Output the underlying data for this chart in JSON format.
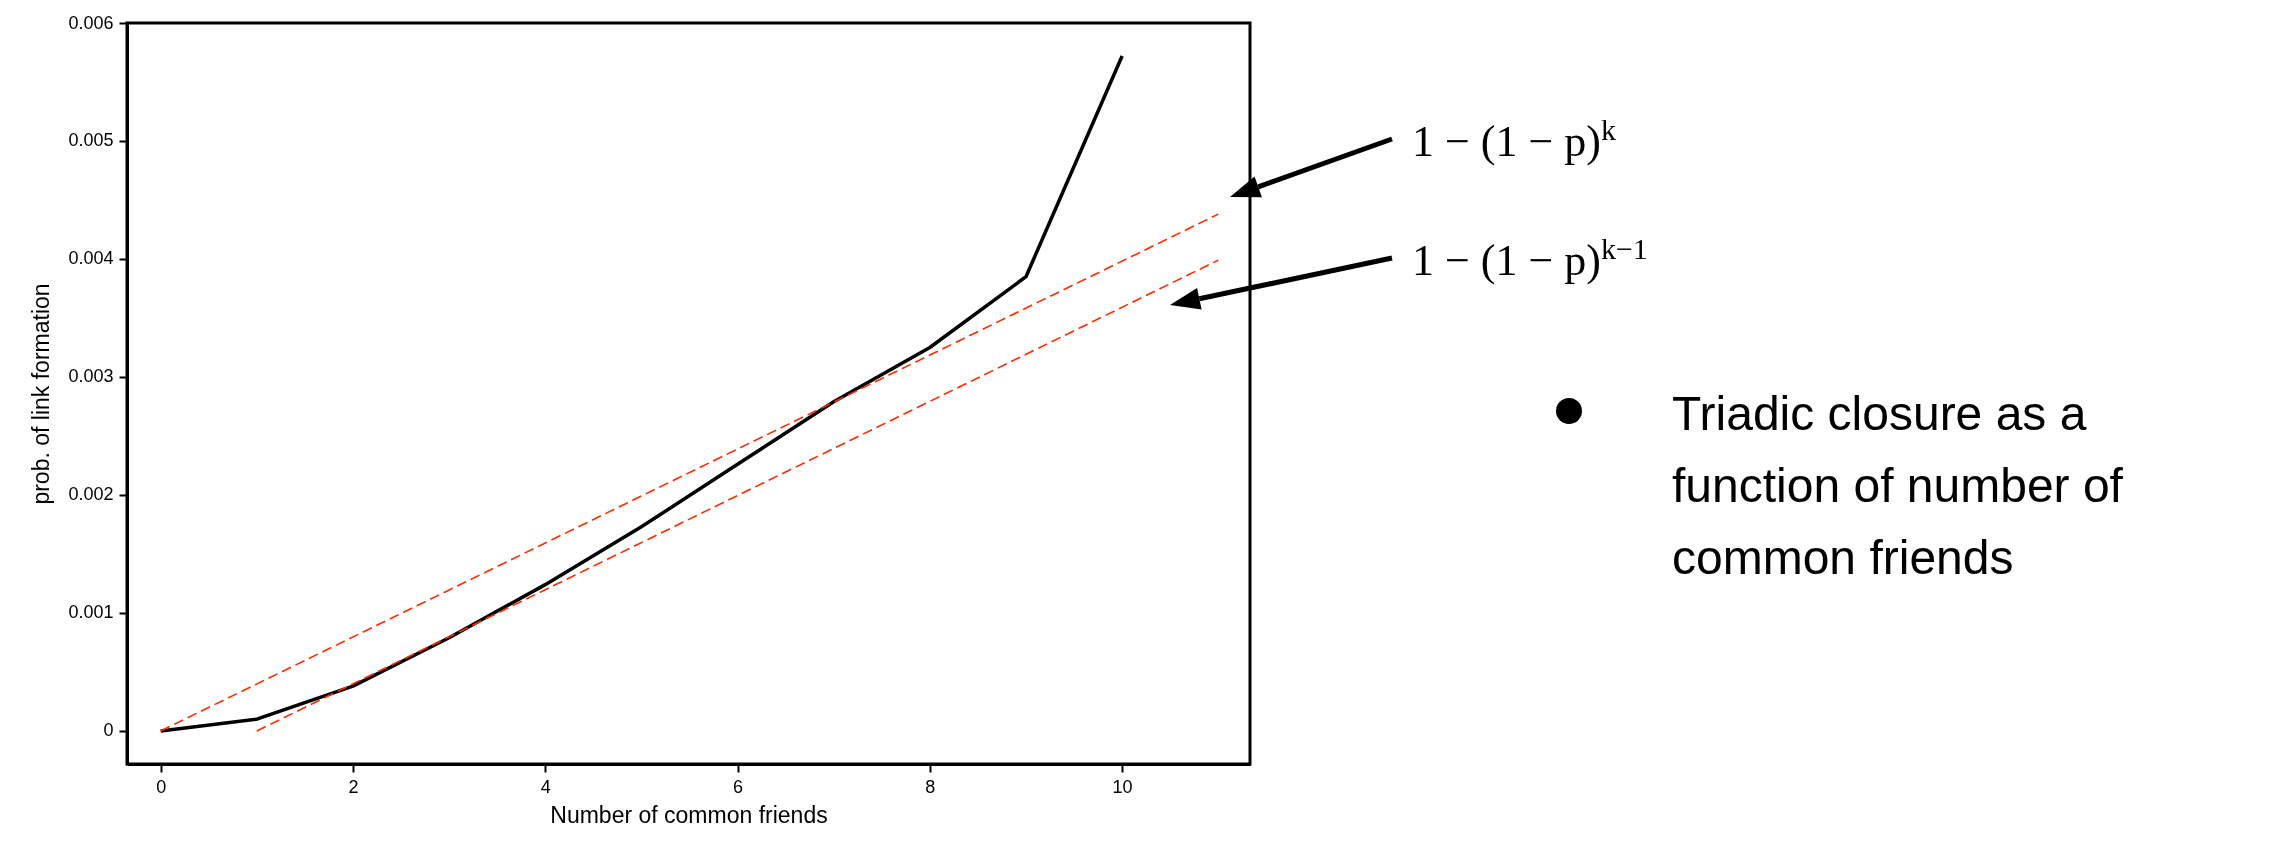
{
  "chart_data": {
    "type": "line",
    "xlabel": "Number of common friends",
    "ylabel": "prob. of link formation",
    "x": [
      0,
      1,
      2,
      3,
      4,
      5,
      6,
      7,
      8,
      9,
      10
    ],
    "series": [
      {
        "color": "#000000",
        "values": [
          0,
          0.0001,
          0.00038,
          0.00079,
          0.00124,
          0.00173,
          0.00226,
          0.00279,
          0.00325,
          0.00385,
          0.00572
        ]
      },
      {
        "color": "#ff2a00",
        "line_style": "dashed",
        "x": [
          0,
          11
        ],
        "values": [
          0,
          0.00438
        ]
      },
      {
        "color": "#ff2a00",
        "line_style": "dashed",
        "x": [
          1,
          11
        ],
        "values": [
          0,
          0.00399
        ]
      }
    ],
    "xlim": [
      -0.35,
      11.33
    ],
    "xticks": [
      0,
      2,
      4,
      6,
      8,
      10
    ],
    "ylim": [
      -0.00028,
      0.006
    ],
    "yticks": [
      0,
      0.001,
      0.002,
      0.003,
      0.004,
      0.005,
      0.006
    ],
    "grid": false,
    "marker": "none",
    "line_style": "solid",
    "annotations": [
      "1 − (1 − p)$^{k}$",
      "1 − (1 − p)$^{k−1}$",
      "Triadic closure as a function of number of common friends"
    ]
  }
}
